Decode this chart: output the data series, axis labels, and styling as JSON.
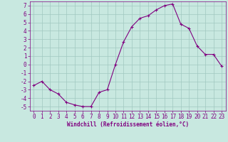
{
  "x": [
    0,
    1,
    2,
    3,
    4,
    5,
    6,
    7,
    8,
    9,
    10,
    11,
    12,
    13,
    14,
    15,
    16,
    17,
    18,
    19,
    20,
    21,
    22,
    23
  ],
  "y": [
    -2.5,
    -2.0,
    -3.0,
    -3.5,
    -4.5,
    -4.8,
    -5.0,
    -5.0,
    -3.3,
    -3.0,
    0.0,
    2.7,
    4.5,
    5.5,
    5.8,
    6.5,
    7.0,
    7.2,
    4.8,
    4.3,
    2.2,
    1.2,
    1.2,
    -0.2
  ],
  "line_color": "#800080",
  "marker": "+",
  "marker_size": 3,
  "marker_lw": 0.8,
  "line_width": 0.8,
  "bg_color": "#c8e8e0",
  "grid_color": "#a0c8c0",
  "xlabel": "Windchill (Refroidissement éolien,°C)",
  "xlabel_color": "#800080",
  "xlabel_fontsize": 5.5,
  "tick_color": "#800080",
  "tick_fontsize": 5.5,
  "xlim": [
    -0.5,
    23.5
  ],
  "ylim": [
    -5.5,
    7.5
  ],
  "yticks": [
    -5,
    -4,
    -3,
    -2,
    -1,
    0,
    1,
    2,
    3,
    4,
    5,
    6,
    7
  ],
  "xticks": [
    0,
    1,
    2,
    3,
    4,
    5,
    6,
    7,
    8,
    9,
    10,
    11,
    12,
    13,
    14,
    15,
    16,
    17,
    18,
    19,
    20,
    21,
    22,
    23
  ],
  "spine_color": "#800080"
}
